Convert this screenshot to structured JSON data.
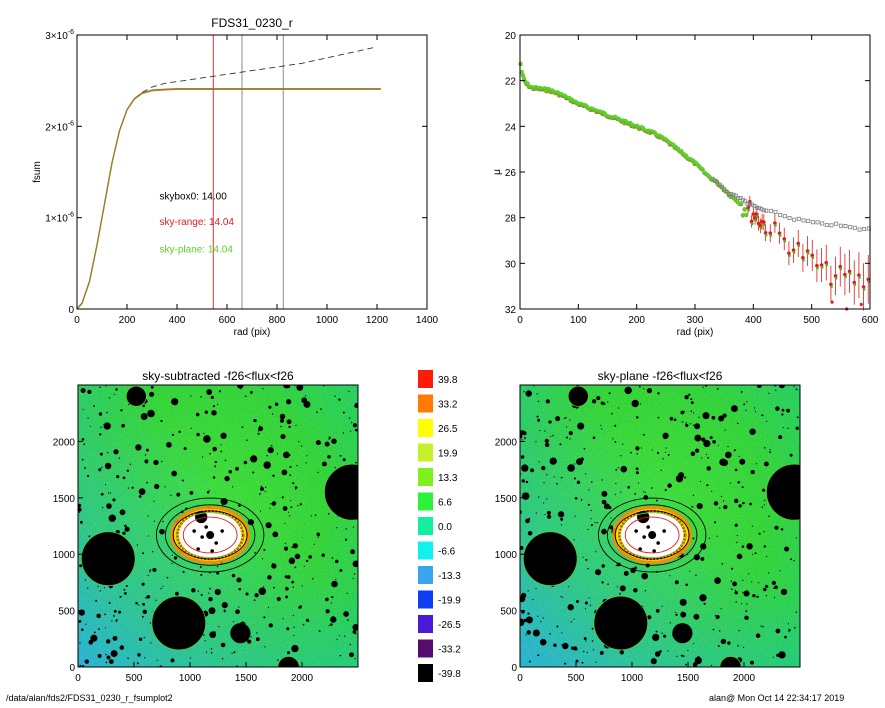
{
  "footer": {
    "path": "/data/alan/fds2/FDS31_0230_r_fsumplot2",
    "user_time": "alan@  Mon Oct 14 22:34:17 2019"
  },
  "colors": {
    "red": "#e31a1c",
    "green": "#5ed12c",
    "olive": "#8c7a1e",
    "gray": "#7f7f7f",
    "black": "#000000"
  },
  "chart_data": [
    {
      "type": "line",
      "title": "FDS31_0230_r",
      "xlabel": "rad (pix)",
      "ylabel": "fsum",
      "xlim": [
        0,
        1400
      ],
      "ylim": [
        0,
        3e-06
      ],
      "xticks": [
        0,
        200,
        400,
        600,
        800,
        1000,
        1200,
        1400
      ],
      "yticks": [
        {
          "value": 0,
          "mantissa": "0",
          "exponent": ""
        },
        {
          "value": 1e-06,
          "mantissa": "1×10",
          "exponent": "-6"
        },
        {
          "value": 2e-06,
          "mantissa": "2×10",
          "exponent": "-6"
        },
        {
          "value": 3e-06,
          "mantissa": "3×10",
          "exponent": "-6"
        }
      ],
      "vlines": [
        {
          "x": 545,
          "color": "#e31a1c"
        },
        {
          "x": 660,
          "color": "#7f7f7f"
        },
        {
          "x": 825,
          "color": "#7f7f7f"
        }
      ],
      "annotations": [
        {
          "text": "skybox0: 14.00",
          "color": "#000000",
          "x": 330,
          "y": 1.2e-06
        },
        {
          "text": "sky-range: 14.04",
          "color": "#e31a1c",
          "x": 330,
          "y": 9.2e-07
        },
        {
          "text": "sky-plane: 14.04",
          "color": "#5ed12c",
          "x": 330,
          "y": 6.2e-07
        }
      ],
      "series": [
        {
          "style": "dashed",
          "color": "#333333",
          "x": [
            0,
            20,
            50,
            80,
            110,
            140,
            170,
            200,
            230,
            260,
            300,
            350,
            400,
            450,
            500,
            550,
            600,
            650,
            700,
            750,
            800,
            850,
            900,
            950,
            1000,
            1050,
            1100,
            1150,
            1200
          ],
          "y": [
            0,
            6e-08,
            3e-07,
            7e-07,
            1.15e-06,
            1.6e-06,
            1.95e-06,
            2.18e-06,
            2.3e-06,
            2.37e-06,
            2.43e-06,
            2.47e-06,
            2.49e-06,
            2.51e-06,
            2.53e-06,
            2.55e-06,
            2.57e-06,
            2.59e-06,
            2.61e-06,
            2.63e-06,
            2.65e-06,
            2.67e-06,
            2.69e-06,
            2.72e-06,
            2.75e-06,
            2.78e-06,
            2.81e-06,
            2.84e-06,
            2.87e-06
          ]
        },
        {
          "style": "solid",
          "color": "#8c7a1e",
          "x": [
            0,
            20,
            50,
            80,
            110,
            140,
            170,
            200,
            230,
            260,
            300,
            350,
            400,
            450,
            500,
            550,
            600,
            700,
            800,
            900,
            1000,
            1100,
            1215
          ],
          "y": [
            0,
            6e-08,
            3e-07,
            7e-07,
            1.15e-06,
            1.6e-06,
            1.95e-06,
            2.18e-06,
            2.3e-06,
            2.36e-06,
            2.39e-06,
            2.4e-06,
            2.405e-06,
            2.405e-06,
            2.405e-06,
            2.405e-06,
            2.405e-06,
            2.405e-06,
            2.405e-06,
            2.405e-06,
            2.405e-06,
            2.405e-06,
            2.405e-06
          ]
        }
      ]
    },
    {
      "type": "scatter",
      "title": "",
      "xlabel": "rad (pix)",
      "ylabel": "μ",
      "xlim": [
        0,
        600
      ],
      "ylim": [
        32,
        20
      ],
      "xticks": [
        0,
        100,
        200,
        300,
        400,
        500,
        600
      ],
      "yticks": [
        20,
        22,
        24,
        26,
        28,
        30,
        32
      ],
      "profile_points": [
        [
          0,
          21.0
        ],
        [
          2,
          21.5
        ],
        [
          5,
          21.8
        ],
        [
          10,
          22.1
        ],
        [
          20,
          22.3
        ],
        [
          50,
          22.4
        ],
        [
          70,
          22.6
        ],
        [
          100,
          23.0
        ],
        [
          150,
          23.5
        ],
        [
          200,
          24.0
        ],
        [
          230,
          24.3
        ],
        [
          250,
          24.6
        ],
        [
          280,
          25.2
        ],
        [
          300,
          25.6
        ],
        [
          320,
          26.1
        ],
        [
          340,
          26.5
        ],
        [
          360,
          27.0
        ],
        [
          380,
          27.4
        ],
        [
          400,
          27.8
        ],
        [
          420,
          28.3
        ],
        [
          450,
          28.9
        ],
        [
          480,
          29.5
        ],
        [
          500,
          29.9
        ],
        [
          530,
          30.5
        ],
        [
          560,
          30.6
        ],
        [
          600,
          30.9
        ]
      ],
      "skybox0_points": [
        [
          360,
          26.9
        ],
        [
          380,
          27.2
        ],
        [
          400,
          27.5
        ],
        [
          420,
          27.7
        ],
        [
          440,
          27.8
        ],
        [
          460,
          28.0
        ],
        [
          480,
          28.1
        ],
        [
          500,
          28.2
        ],
        [
          520,
          28.3
        ],
        [
          540,
          28.3
        ],
        [
          560,
          28.4
        ],
        [
          580,
          28.5
        ],
        [
          600,
          28.5
        ]
      ],
      "outliers": [
        [
          535,
          31.7
        ],
        [
          560,
          32.0
        ],
        [
          585,
          31.8
        ]
      ],
      "colors": {
        "profile": "#5ed12c",
        "sky_range": "#e31a1c",
        "skybox0": "#7f7f7f"
      }
    },
    {
      "type": "heatmap",
      "title": "sky-subtracted -f26<flux<f26",
      "xlim": [
        0,
        2500
      ],
      "ylim": [
        0,
        2500
      ],
      "xticks": [
        0,
        500,
        1000,
        1500,
        2000
      ],
      "yticks": [
        0,
        500,
        1000,
        1500,
        2000
      ],
      "center": [
        1180,
        1170
      ],
      "ellipses": [
        [
          480,
          330,
          "#000000"
        ],
        [
          400,
          270,
          "#000000"
        ],
        [
          330,
          215,
          "#000000"
        ],
        [
          300,
          200,
          "#5ed12c"
        ],
        [
          240,
          160,
          "#e31a1c"
        ]
      ],
      "masks": [
        [
          270,
          960,
          240,
          "e"
        ],
        [
          1100,
          1330,
          55,
          "f"
        ],
        [
          2450,
          1550,
          250,
          "e"
        ],
        [
          900,
          390,
          240,
          "e"
        ],
        [
          1450,
          300,
          90,
          "f"
        ],
        [
          1880,
          0,
          95,
          "e"
        ],
        [
          520,
          2400,
          90,
          "e"
        ],
        [
          1300,
          2050,
          28,
          "f"
        ],
        [
          1860,
          1880,
          30,
          "f"
        ],
        [
          2200,
          1800,
          22,
          "f"
        ],
        [
          1750,
          1450,
          20,
          "f"
        ],
        [
          750,
          1200,
          25,
          "f"
        ],
        [
          1960,
          980,
          25,
          "f"
        ],
        [
          1030,
          680,
          20,
          "f"
        ]
      ]
    },
    {
      "type": "heatmap",
      "title": "sky-plane -f26<flux<f26",
      "xlim": [
        0,
        2500
      ],
      "ylim": [
        0,
        2500
      ],
      "xticks": [
        0,
        500,
        1000,
        1500,
        2000
      ],
      "yticks": [
        0,
        500,
        1000,
        1500,
        2000
      ],
      "center": [
        1180,
        1170
      ],
      "ellipses": [
        [
          480,
          330,
          "#000000"
        ],
        [
          400,
          270,
          "#000000"
        ],
        [
          330,
          215,
          "#000000"
        ],
        [
          300,
          200,
          "#5ed12c"
        ],
        [
          240,
          160,
          "#e31a1c"
        ]
      ],
      "masks": [
        [
          270,
          960,
          240,
          "e"
        ],
        [
          1100,
          1330,
          55,
          "f"
        ],
        [
          2450,
          1550,
          250,
          "e"
        ],
        [
          900,
          390,
          240,
          "e"
        ],
        [
          1450,
          300,
          90,
          "f"
        ],
        [
          1880,
          0,
          95,
          "e"
        ],
        [
          520,
          2400,
          90,
          "e"
        ],
        [
          1300,
          2050,
          28,
          "f"
        ],
        [
          1860,
          1880,
          30,
          "f"
        ],
        [
          2200,
          1800,
          22,
          "f"
        ],
        [
          1750,
          1450,
          20,
          "f"
        ],
        [
          750,
          1200,
          25,
          "f"
        ],
        [
          1960,
          980,
          25,
          "f"
        ],
        [
          1030,
          680,
          20,
          "f"
        ]
      ]
    },
    {
      "type": "colorbar",
      "labels": [
        "39.8",
        "33.2",
        "26.5",
        "19.9",
        "13.3",
        "6.6",
        "0.0",
        "-6.6",
        "-13.3",
        "-19.9",
        "-26.5",
        "-33.2",
        "-39.8"
      ],
      "colors": [
        "#ff1a0a",
        "#ff7a00",
        "#ffff00",
        "#c6f02a",
        "#7ef01e",
        "#2bf23a",
        "#14eea0",
        "#10f2f0",
        "#3ba4f0",
        "#0f3ef2",
        "#4b1ad8",
        "#560c6e",
        "#000000"
      ]
    }
  ]
}
